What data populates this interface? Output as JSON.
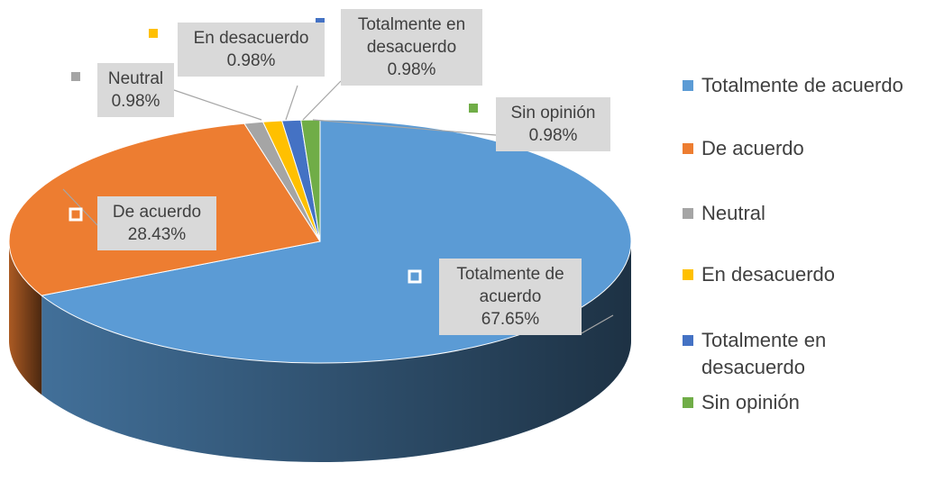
{
  "chart_data": {
    "type": "pie",
    "categories": [
      "Totalmente de acuerdo",
      "De acuerdo",
      "Neutral",
      "En desacuerdo",
      "Totalmente en desacuerdo",
      "Sin opinión"
    ],
    "values": [
      67.65,
      28.43,
      0.98,
      0.98,
      0.98,
      0.98
    ],
    "value_labels": [
      "67.65%",
      "28.43%",
      "0.98%",
      "0.98%",
      "0.98%",
      "0.98%"
    ],
    "colors": [
      "#5b9bd5",
      "#ed7d31",
      "#a5a5a5",
      "#ffc000",
      "#4472c4",
      "#70ad47"
    ],
    "legend": "right"
  }
}
